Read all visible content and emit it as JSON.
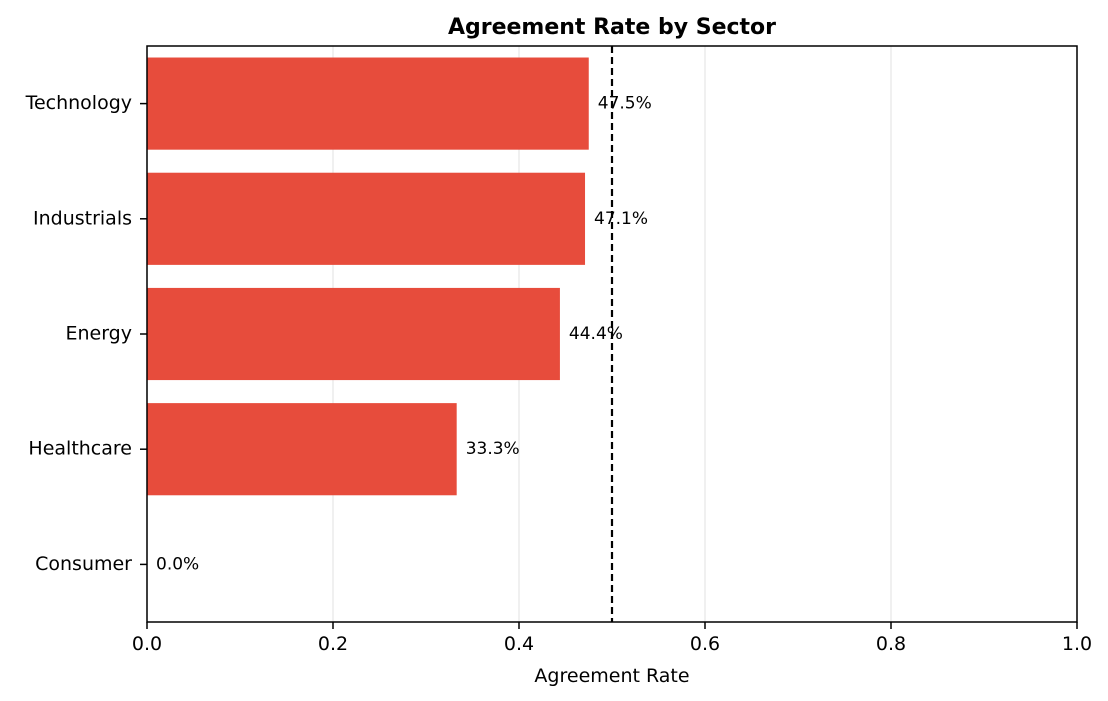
{
  "chart_data": {
    "type": "bar",
    "orientation": "horizontal",
    "title": "Agreement Rate by Sector",
    "xlabel": "Agreement Rate",
    "ylabel": "",
    "categories": [
      "Technology",
      "Industrials",
      "Energy",
      "Healthcare",
      "Consumer"
    ],
    "values": [
      0.475,
      0.471,
      0.444,
      0.333,
      0.0
    ],
    "value_labels": [
      "47.5%",
      "47.1%",
      "44.4%",
      "33.3%",
      "0.0%"
    ],
    "xlim": [
      0.0,
      1.0
    ],
    "xticks": [
      0.0,
      0.2,
      0.4,
      0.6,
      0.8,
      1.0
    ],
    "xtick_labels": [
      "0.0",
      "0.2",
      "0.4",
      "0.6",
      "0.8",
      "1.0"
    ],
    "reference_line": {
      "x": 0.5,
      "style": "dashed",
      "color": "#000000"
    },
    "grid": "x",
    "bar_color": "#e74c3c"
  }
}
